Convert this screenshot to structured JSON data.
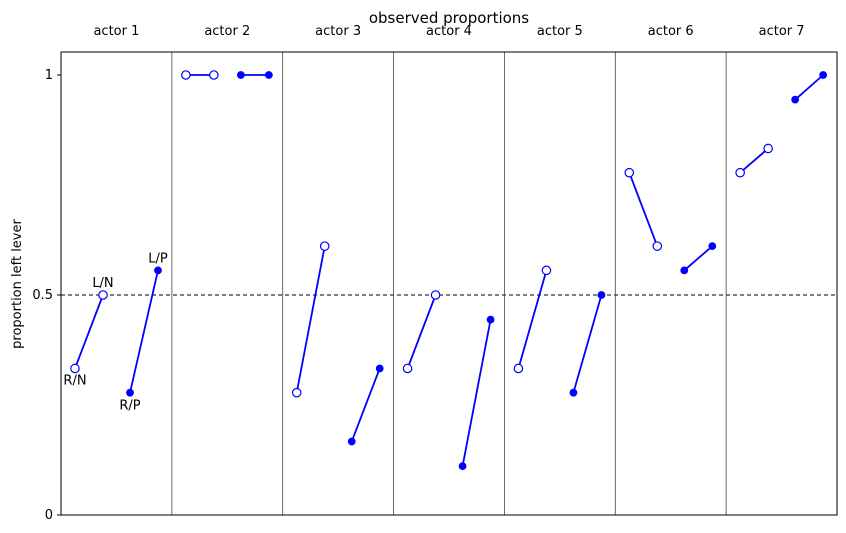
{
  "chart_data": {
    "type": "line",
    "title": "observed proportions",
    "xlabel": "",
    "ylabel": "proportion left lever",
    "ylim": [
      0,
      1
    ],
    "yticks": [
      {
        "value": 0,
        "label": "0"
      },
      {
        "value": 0.5,
        "label": "0.5"
      },
      {
        "value": 1,
        "label": "1"
      }
    ],
    "reference_line": {
      "y": 0.5,
      "style": "dashed"
    },
    "treatment_labels": [
      "R/N",
      "L/N",
      "R/P",
      "L/P"
    ],
    "color": "#0000ff",
    "actors": [
      {
        "name": "actor 1",
        "values": [
          0.333,
          0.5,
          0.278,
          0.556
        ]
      },
      {
        "name": "actor 2",
        "values": [
          1,
          1,
          1,
          1
        ]
      },
      {
        "name": "actor 3",
        "values": [
          0.278,
          0.611,
          0.167,
          0.333
        ]
      },
      {
        "name": "actor 4",
        "values": [
          0.333,
          0.5,
          0.111,
          0.444
        ]
      },
      {
        "name": "actor 5",
        "values": [
          0.333,
          0.556,
          0.278,
          0.5
        ]
      },
      {
        "name": "actor 6",
        "values": [
          0.778,
          0.611,
          0.556,
          0.611
        ]
      },
      {
        "name": "actor 7",
        "values": [
          0.778,
          0.833,
          0.944,
          1
        ]
      }
    ]
  }
}
